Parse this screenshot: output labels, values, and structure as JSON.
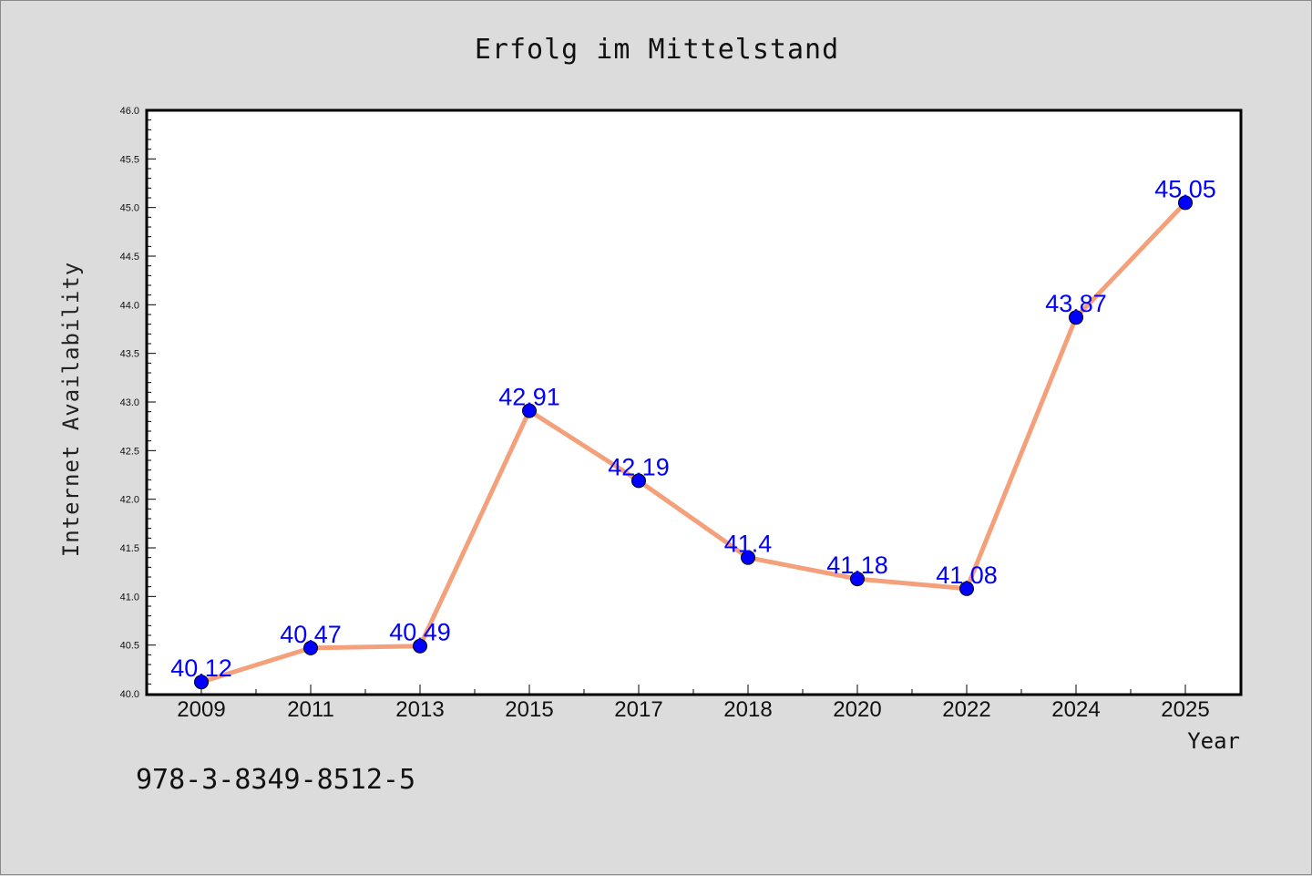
{
  "isbn": "978-3-8349-8512-5",
  "colors": {
    "background": "#dcdcdc",
    "plot_bg": "#ffffff",
    "line": "#f4a07a",
    "marker": "#0000ff",
    "label": "#0000ff"
  },
  "chart_data": {
    "type": "line",
    "title": "Erfolg im Mittelstand",
    "xlabel": "Year",
    "ylabel": "Internet Availability",
    "categories": [
      "2009",
      "2011",
      "2013",
      "2015",
      "2017",
      "2018",
      "2020",
      "2022",
      "2024",
      "2025"
    ],
    "series": [
      {
        "values": [
          40.12,
          40.47,
          40.49,
          42.91,
          42.19,
          41.4,
          41.18,
          41.08,
          43.87,
          45.05
        ]
      }
    ],
    "data_labels": [
      "40.12",
      "40.47",
      "40.49",
      "42.91",
      "42.19",
      "41.4",
      "41.18",
      "41.08",
      "43.87",
      "45.05"
    ],
    "ylim": [
      40.0,
      46.0
    ],
    "yticks": [
      "40.0",
      "40.5",
      "41.0",
      "41.5",
      "42.0",
      "42.5",
      "43.0",
      "43.5",
      "44.0",
      "44.5",
      "45.0",
      "45.5",
      "46.0"
    ],
    "grid": false,
    "legend": "none"
  }
}
